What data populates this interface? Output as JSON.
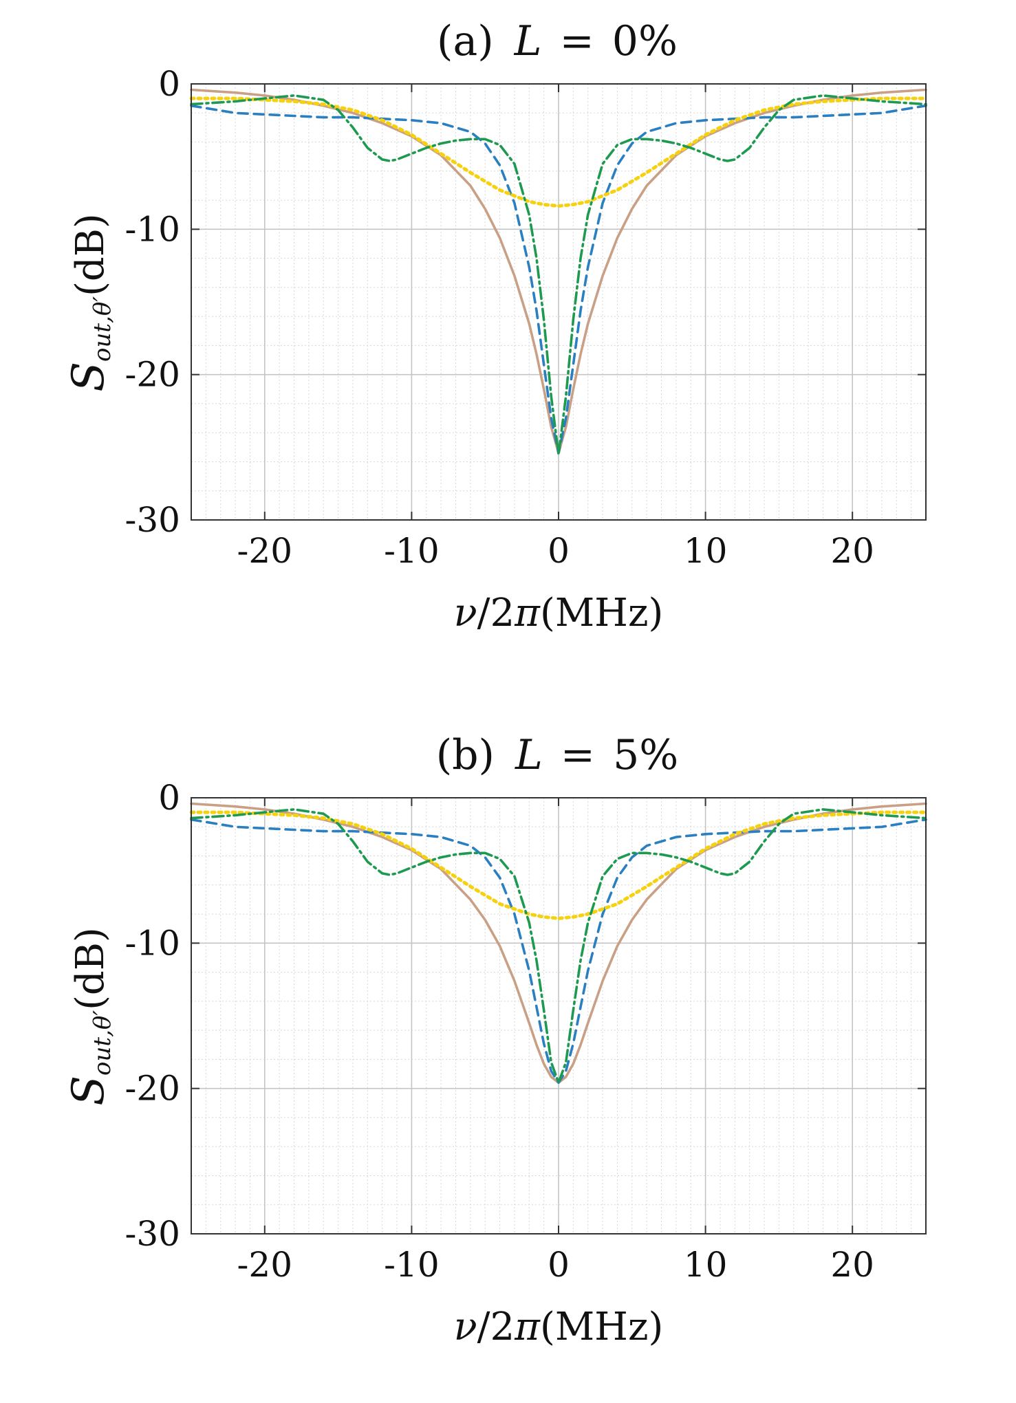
{
  "chart_data": [
    {
      "type": "line",
      "panel_label": "(a)",
      "title_var": "L",
      "title_eq": "=",
      "title_value": "0%",
      "xlabel_var": "ν",
      "xlabel_mid": "/2",
      "xlabel_pi": "π",
      "xlabel_unit": "(MHz)",
      "ylabel_var": "S",
      "ylabel_sub": "out,θ′",
      "ylabel_unit": "(dB)",
      "xlim": [
        -25,
        25
      ],
      "ylim": [
        -30,
        0
      ],
      "xticks": [
        -20,
        -10,
        0,
        10,
        20
      ],
      "xtick_labels": [
        "-20",
        "-10",
        "0",
        "10",
        "20"
      ],
      "yticks": [
        0,
        -10,
        -20,
        -30
      ],
      "ytick_labels": [
        "0",
        "-10",
        "-20",
        "-30"
      ],
      "grid": true,
      "series": [
        {
          "name": "solid",
          "color": "#c9a085",
          "dash": "none",
          "x": [
            -25,
            -22,
            -20,
            -18,
            -16,
            -14,
            -12,
            -10,
            -8,
            -6,
            -5,
            -4,
            -3,
            -2,
            -1.5,
            -1,
            -0.5,
            0,
            0.5,
            1,
            1.5,
            2,
            3,
            4,
            5,
            6,
            8,
            10,
            12,
            14,
            16,
            18,
            20,
            22,
            25
          ],
          "y": [
            -0.4,
            -0.6,
            -0.8,
            -1.1,
            -1.5,
            -2.0,
            -2.7,
            -3.6,
            -4.9,
            -7.0,
            -8.6,
            -10.6,
            -13.2,
            -16.5,
            -18.6,
            -21.0,
            -23.6,
            -25.4,
            -23.6,
            -21.0,
            -18.6,
            -16.5,
            -13.2,
            -10.6,
            -8.6,
            -7.0,
            -4.9,
            -3.6,
            -2.7,
            -2.0,
            -1.5,
            -1.1,
            -0.8,
            -0.6,
            -0.4
          ]
        },
        {
          "name": "dashed",
          "color": "#2a7fc0",
          "dash": "14,9",
          "x": [
            -25,
            -22,
            -20,
            -18,
            -16,
            -14,
            -12,
            -10,
            -8,
            -6,
            -5,
            -4,
            -3,
            -2,
            -1.5,
            -1,
            -0.5,
            0,
            0.5,
            1,
            1.5,
            2,
            3,
            4,
            5,
            6,
            8,
            10,
            12,
            14,
            16,
            18,
            20,
            22,
            25
          ],
          "y": [
            -1.5,
            -2.0,
            -2.1,
            -2.2,
            -2.3,
            -2.3,
            -2.4,
            -2.5,
            -2.7,
            -3.3,
            -4.1,
            -5.6,
            -8.2,
            -12.6,
            -15.6,
            -19.3,
            -23.0,
            -25.4,
            -23.0,
            -19.3,
            -15.6,
            -12.6,
            -8.2,
            -5.6,
            -4.1,
            -3.3,
            -2.7,
            -2.5,
            -2.4,
            -2.3,
            -2.3,
            -2.2,
            -2.1,
            -2.0,
            -1.5
          ]
        },
        {
          "name": "dotted",
          "color": "#f5d10f",
          "dash": "4,6",
          "x": [
            -25,
            -22,
            -20,
            -18,
            -16,
            -14,
            -12,
            -10,
            -8,
            -6,
            -4,
            -2,
            -1,
            0,
            1,
            2,
            4,
            6,
            8,
            10,
            12,
            14,
            16,
            18,
            20,
            22,
            25
          ],
          "y": [
            -1.0,
            -1.0,
            -1.1,
            -1.2,
            -1.4,
            -1.8,
            -2.5,
            -3.5,
            -4.8,
            -6.1,
            -7.3,
            -8.1,
            -8.3,
            -8.4,
            -8.3,
            -8.1,
            -7.3,
            -6.1,
            -4.8,
            -3.5,
            -2.5,
            -1.8,
            -1.4,
            -1.2,
            -1.1,
            -1.0,
            -1.0
          ]
        },
        {
          "name": "dash-dot",
          "color": "#1e9a50",
          "dash": "16,6,3,6",
          "x": [
            -25,
            -22,
            -20,
            -18,
            -16,
            -15,
            -14,
            -13,
            -12,
            -11.5,
            -11,
            -10,
            -9,
            -8,
            -7,
            -6,
            -5,
            -4,
            -3,
            -2,
            -1.5,
            -1,
            -0.5,
            0,
            0.5,
            1,
            1.5,
            2,
            3,
            4,
            5,
            6,
            7,
            8,
            9,
            10,
            11,
            11.5,
            12,
            13,
            14,
            15,
            16,
            18,
            20,
            22,
            25
          ],
          "y": [
            -1.4,
            -1.2,
            -1.0,
            -0.8,
            -1.1,
            -1.8,
            -3.0,
            -4.4,
            -5.2,
            -5.3,
            -5.2,
            -4.8,
            -4.4,
            -4.1,
            -3.9,
            -3.8,
            -3.8,
            -4.2,
            -5.5,
            -9.0,
            -12.0,
            -16.2,
            -21.5,
            -25.5,
            -21.5,
            -16.2,
            -12.0,
            -9.0,
            -5.5,
            -4.2,
            -3.8,
            -3.8,
            -3.9,
            -4.1,
            -4.4,
            -4.8,
            -5.2,
            -5.3,
            -5.2,
            -4.4,
            -3.0,
            -1.8,
            -1.1,
            -0.8,
            -1.0,
            -1.2,
            -1.4
          ]
        }
      ]
    },
    {
      "type": "line",
      "panel_label": "(b)",
      "title_var": "L",
      "title_eq": "=",
      "title_value": "5%",
      "xlabel_var": "ν",
      "xlabel_mid": "/2",
      "xlabel_pi": "π",
      "xlabel_unit": "(MHz)",
      "ylabel_var": "S",
      "ylabel_sub": "out,θ′",
      "ylabel_unit": "(dB)",
      "xlim": [
        -25,
        25
      ],
      "ylim": [
        -30,
        0
      ],
      "xticks": [
        -20,
        -10,
        0,
        10,
        20
      ],
      "xtick_labels": [
        "-20",
        "-10",
        "0",
        "10",
        "20"
      ],
      "yticks": [
        0,
        -10,
        -20,
        -30
      ],
      "ytick_labels": [
        "0",
        "-10",
        "-20",
        "-30"
      ],
      "grid": true,
      "series": [
        {
          "name": "solid",
          "color": "#c9a085",
          "dash": "none",
          "x": [
            -25,
            -22,
            -20,
            -18,
            -16,
            -14,
            -12,
            -10,
            -8,
            -6,
            -5,
            -4,
            -3,
            -2,
            -1.5,
            -1,
            -0.5,
            0,
            0.5,
            1,
            1.5,
            2,
            3,
            4,
            5,
            6,
            8,
            10,
            12,
            14,
            16,
            18,
            20,
            22,
            25
          ],
          "y": [
            -0.4,
            -0.6,
            -0.8,
            -1.1,
            -1.5,
            -2.0,
            -2.7,
            -3.6,
            -4.9,
            -7.0,
            -8.4,
            -10.2,
            -12.6,
            -15.5,
            -17.0,
            -18.3,
            -19.2,
            -19.6,
            -19.2,
            -18.3,
            -17.0,
            -15.5,
            -12.6,
            -10.2,
            -8.4,
            -7.0,
            -4.9,
            -3.6,
            -2.7,
            -2.0,
            -1.5,
            -1.1,
            -0.8,
            -0.6,
            -0.4
          ]
        },
        {
          "name": "dashed",
          "color": "#2a7fc0",
          "dash": "14,9",
          "x": [
            -25,
            -22,
            -20,
            -18,
            -16,
            -14,
            -12,
            -10,
            -8,
            -6,
            -5,
            -4,
            -3,
            -2,
            -1.5,
            -1,
            -0.5,
            0,
            0.5,
            1,
            1.5,
            2,
            3,
            4,
            5,
            6,
            8,
            10,
            12,
            14,
            16,
            18,
            20,
            22,
            25
          ],
          "y": [
            -1.5,
            -2.0,
            -2.1,
            -2.2,
            -2.3,
            -2.3,
            -2.4,
            -2.5,
            -2.7,
            -3.3,
            -4.1,
            -5.5,
            -8.0,
            -11.9,
            -14.4,
            -16.9,
            -18.8,
            -19.6,
            -18.8,
            -16.9,
            -14.4,
            -11.9,
            -8.0,
            -5.5,
            -4.1,
            -3.3,
            -2.7,
            -2.5,
            -2.4,
            -2.3,
            -2.3,
            -2.2,
            -2.1,
            -2.0,
            -1.5
          ]
        },
        {
          "name": "dotted",
          "color": "#f5d10f",
          "dash": "4,6",
          "x": [
            -25,
            -22,
            -20,
            -18,
            -16,
            -14,
            -12,
            -10,
            -8,
            -6,
            -4,
            -2,
            -1,
            0,
            1,
            2,
            4,
            6,
            8,
            10,
            12,
            14,
            16,
            18,
            20,
            22,
            25
          ],
          "y": [
            -1.0,
            -1.0,
            -1.1,
            -1.2,
            -1.4,
            -1.8,
            -2.5,
            -3.5,
            -4.8,
            -6.1,
            -7.3,
            -8.0,
            -8.2,
            -8.3,
            -8.2,
            -8.0,
            -7.3,
            -6.1,
            -4.8,
            -3.5,
            -2.5,
            -1.8,
            -1.4,
            -1.2,
            -1.1,
            -1.0,
            -1.0
          ]
        },
        {
          "name": "dash-dot",
          "color": "#1e9a50",
          "dash": "16,6,3,6",
          "x": [
            -25,
            -22,
            -20,
            -18,
            -16,
            -15,
            -14,
            -13,
            -12,
            -11.5,
            -11,
            -10,
            -9,
            -8,
            -7,
            -6,
            -5,
            -4,
            -3,
            -2,
            -1.5,
            -1,
            -0.5,
            0,
            0.5,
            1,
            1.5,
            2,
            3,
            4,
            5,
            6,
            7,
            8,
            9,
            10,
            11,
            11.5,
            12,
            13,
            14,
            15,
            16,
            18,
            20,
            22,
            25
          ],
          "y": [
            -1.4,
            -1.2,
            -1.0,
            -0.8,
            -1.1,
            -1.8,
            -3.0,
            -4.4,
            -5.2,
            -5.3,
            -5.2,
            -4.8,
            -4.4,
            -4.1,
            -3.9,
            -3.8,
            -3.8,
            -4.2,
            -5.4,
            -8.6,
            -11.2,
            -14.6,
            -18.2,
            -19.6,
            -18.2,
            -14.6,
            -11.2,
            -8.6,
            -5.4,
            -4.2,
            -3.8,
            -3.8,
            -3.9,
            -4.1,
            -4.4,
            -4.8,
            -5.2,
            -5.3,
            -5.2,
            -4.4,
            -3.0,
            -1.8,
            -1.1,
            -0.8,
            -1.0,
            -1.2,
            -1.4
          ]
        }
      ]
    }
  ]
}
